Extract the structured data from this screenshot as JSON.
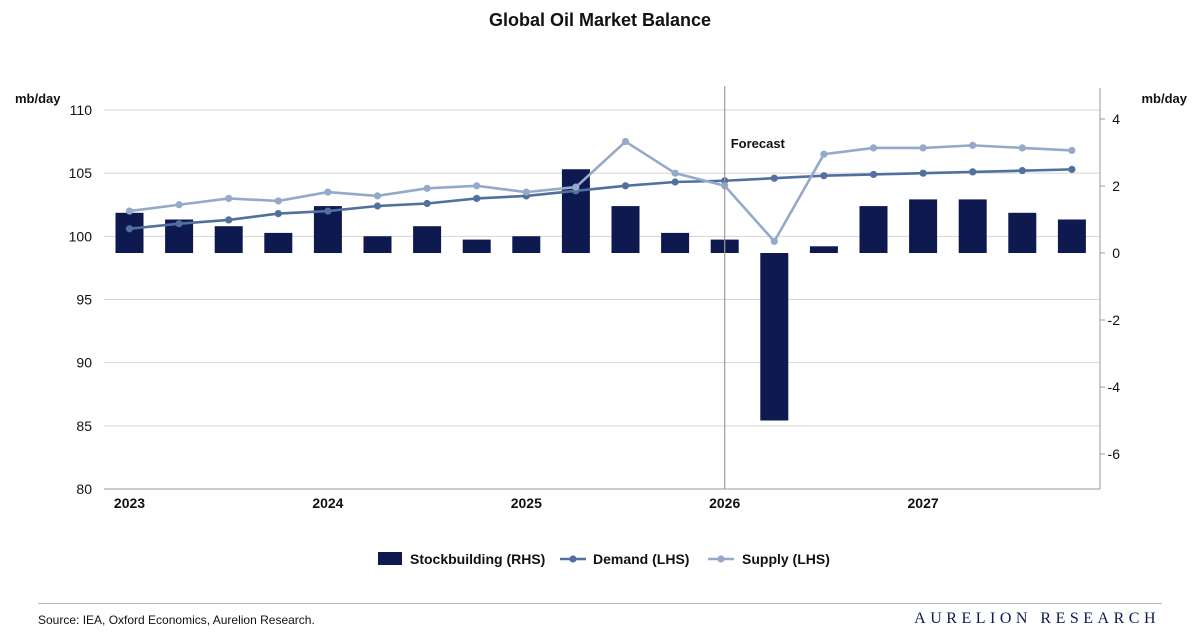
{
  "chart_data": {
    "type": "bar+line",
    "title": "Global Oil Market Balance",
    "left_axis": {
      "unit": "mb/day",
      "min": 80,
      "max": 110,
      "ticks": [
        80,
        85,
        90,
        95,
        100,
        105,
        110
      ]
    },
    "right_axis": {
      "unit": "mb/day",
      "min": -7,
      "max": 5,
      "ticks": [
        -6,
        -4,
        -2,
        0,
        2,
        4
      ]
    },
    "x_labels": [
      "2023",
      "2024",
      "2025",
      "2026",
      "2027"
    ],
    "quarters": [
      "2023 Q1",
      "2023 Q2",
      "2023 Q3",
      "2023 Q4",
      "2024 Q1",
      "2024 Q2",
      "2024 Q3",
      "2024 Q4",
      "2025 Q1",
      "2025 Q2",
      "2025 Q3",
      "2025 Q4",
      "2026 Q1",
      "2026 Q2",
      "2026 Q3",
      "2026 Q4",
      "2027 Q1",
      "2027 Q2",
      "2027 Q3",
      "2027 Q4"
    ],
    "forecast_start": "2026 Q1",
    "forecast_label": "Forecast",
    "series": [
      {
        "name": "Stockbuilding (RHS)",
        "kind": "bar",
        "axis": "right",
        "color": "#0e1a4f",
        "values": [
          1.2,
          1.0,
          0.8,
          0.6,
          1.4,
          0.5,
          0.8,
          0.4,
          0.5,
          2.5,
          1.4,
          0.6,
          0.4,
          -5.0,
          0.2,
          1.4,
          1.6,
          1.6,
          1.2,
          1.0
        ]
      },
      {
        "name": "Demand (LHS)",
        "kind": "line",
        "axis": "left",
        "color": "#52709f",
        "values": [
          100.6,
          101.0,
          101.3,
          101.8,
          102.0,
          102.4,
          102.6,
          103.0,
          103.2,
          103.6,
          104.0,
          104.3,
          104.4,
          104.6,
          104.8,
          104.9,
          105.0,
          105.1,
          105.2,
          105.3
        ]
      },
      {
        "name": "Supply (LHS)",
        "kind": "line",
        "axis": "left",
        "color": "#95a9c8",
        "values": [
          102.0,
          102.5,
          103.0,
          102.8,
          103.5,
          103.2,
          103.8,
          104.0,
          103.5,
          103.9,
          107.5,
          105.0,
          104.0,
          99.6,
          106.5,
          107.0,
          107.0,
          107.2,
          107.0,
          106.8
        ]
      }
    ],
    "legend_position": "bottom-center",
    "grid": true
  },
  "footer": {
    "source": "Source: IEA, Oxford Economics, Aurelion Research.",
    "brand": "AURELION RESEARCH"
  }
}
